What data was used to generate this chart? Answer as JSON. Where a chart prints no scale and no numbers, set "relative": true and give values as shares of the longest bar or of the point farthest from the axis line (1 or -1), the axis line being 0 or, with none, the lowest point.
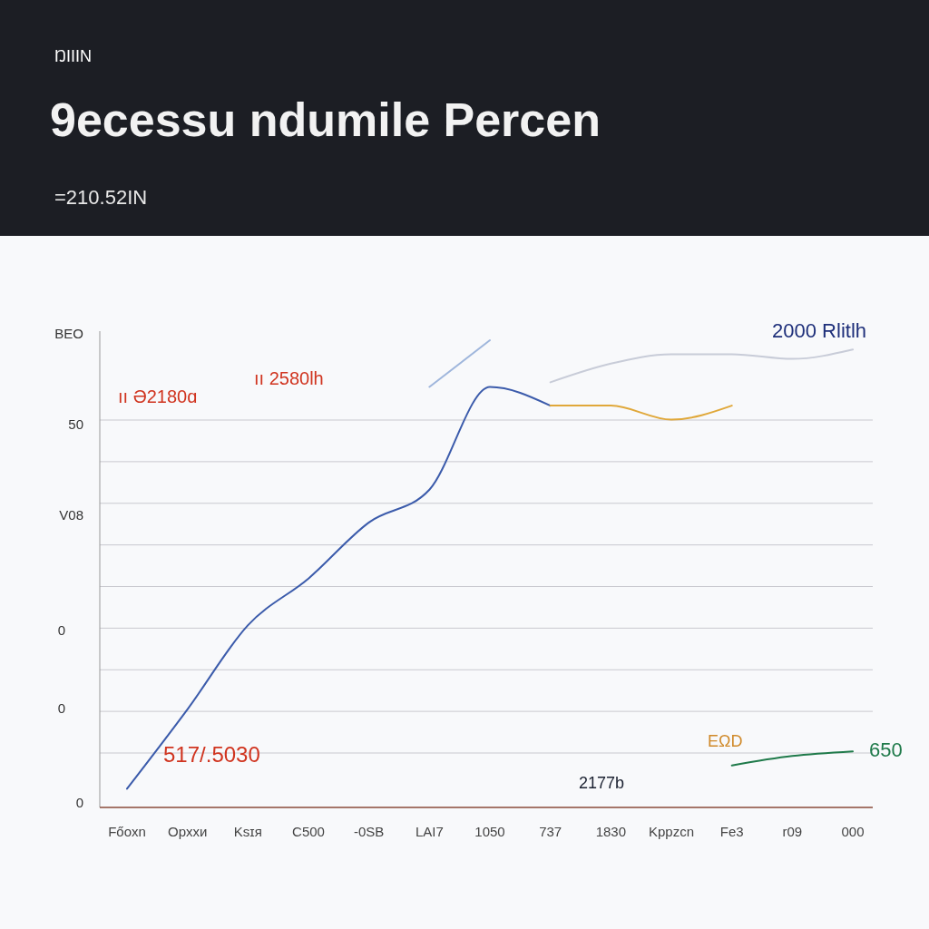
{
  "chart_data": {
    "type": "line",
    "title": "9ecessu ndumile Percen",
    "subtitle": "=210.52IN",
    "relative": true,
    "grid": true,
    "legend": false,
    "categories": [
      "Főoxn",
      "Opxxи",
      "Ksɪя",
      "C500",
      "-0SB",
      "LAI7",
      "1050",
      "737",
      "1830",
      "Kppzcn",
      "Fe3",
      "r09",
      "000"
    ],
    "series": [
      {
        "color": "#3b5bab",
        "values": [
          0.04,
          0.21,
          0.39,
          0.49,
          0.61,
          0.68,
          0.9,
          0.86,
          null,
          null,
          null,
          null,
          null
        ]
      },
      {
        "color": "#c8ccd8",
        "values": [
          null,
          null,
          null,
          null,
          null,
          null,
          null,
          0.91,
          0.95,
          0.97,
          0.97,
          0.96,
          0.98
        ]
      },
      {
        "color": "#9fb6dc",
        "values": [
          null,
          null,
          null,
          null,
          null,
          0.9,
          1,
          null,
          null,
          null,
          null,
          null,
          null
        ]
      },
      {
        "color": "#e0a83a",
        "values": [
          null,
          null,
          null,
          null,
          null,
          null,
          null,
          0.86,
          0.86,
          0.83,
          0.86,
          null,
          null
        ]
      },
      {
        "color": "#1f7a4a",
        "values": [
          null,
          null,
          null,
          null,
          null,
          null,
          null,
          null,
          null,
          null,
          0.09,
          0.11,
          0.12
        ]
      }
    ],
    "annotations": [
      "ŊIIIN",
      "ıı Ə2180ɑ",
      "ıı 2580lh",
      "2000 Rlitlh",
      "517/.5030",
      "2177b",
      "EΩD",
      "650",
      "BEO",
      "50",
      "V08",
      "0",
      "0",
      "0"
    ]
  }
}
